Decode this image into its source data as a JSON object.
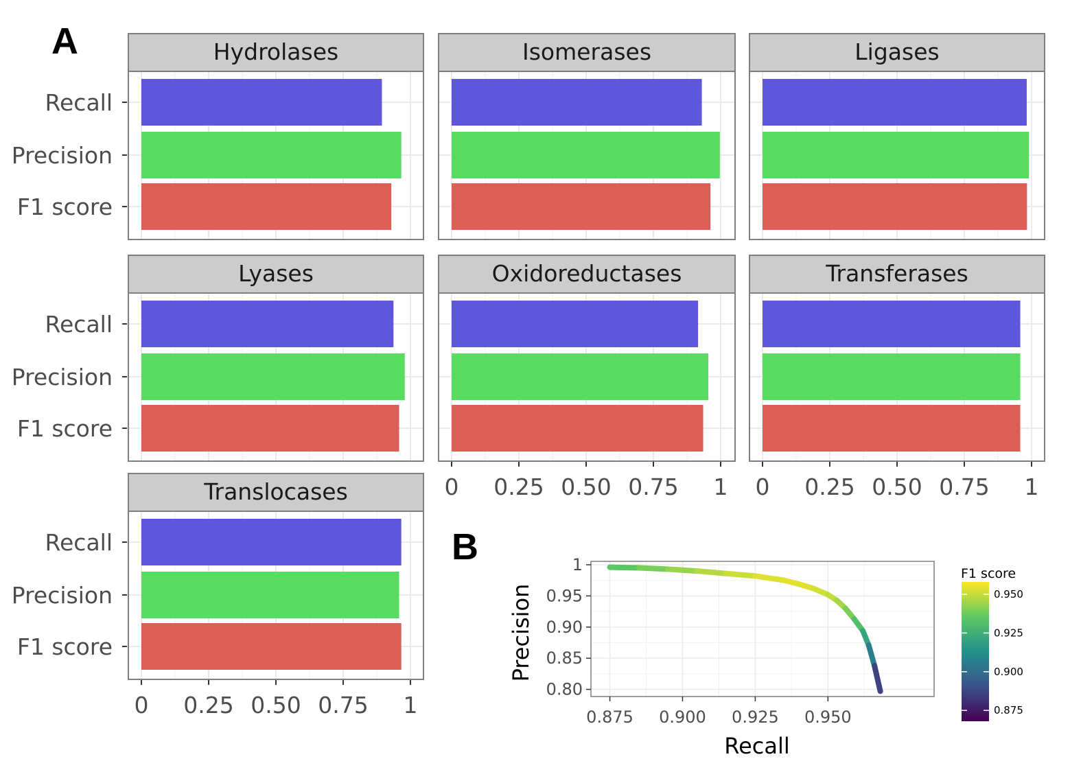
{
  "panel_labels": {
    "a": "A",
    "b": "B"
  },
  "colors": {
    "recall": "#5f57db",
    "precision": "#57db61",
    "f1": "#db5f57",
    "strip_bg": "#cccccc",
    "panel_border": "#7f7f7f",
    "grid": "#ebebeb"
  },
  "chart_data": [
    {
      "type": "bar",
      "orientation": "horizontal",
      "facets": [
        "Hydrolases",
        "Isomerases",
        "Ligases",
        "Lyases",
        "Oxidoreductases",
        "Transferases",
        "Translocases"
      ],
      "categories": [
        "Recall",
        "Precision",
        "F1 score"
      ],
      "x_ticks": [
        "0",
        "0.25",
        "0.50",
        "0.75",
        "1"
      ],
      "xlim": [
        0,
        1
      ],
      "values": {
        "Hydrolases": {
          "Recall": 0.894,
          "Precision": 0.966,
          "F1 score": 0.929
        },
        "Isomerases": {
          "Recall": 0.93,
          "Precision": 0.997,
          "F1 score": 0.962
        },
        "Ligases": {
          "Recall": 0.982,
          "Precision": 0.99,
          "F1 score": 0.983
        },
        "Lyases": {
          "Recall": 0.937,
          "Precision": 0.979,
          "F1 score": 0.958
        },
        "Oxidoreductases": {
          "Recall": 0.916,
          "Precision": 0.954,
          "F1 score": 0.935
        },
        "Transferases": {
          "Recall": 0.958,
          "Precision": 0.958,
          "F1 score": 0.958
        },
        "Translocases": {
          "Recall": 0.966,
          "Precision": 0.958,
          "F1 score": 0.966
        }
      },
      "grid": true
    },
    {
      "type": "line",
      "xlabel": "Recall",
      "ylabel": "Precision",
      "xlim": [
        0.8685,
        0.9865
      ],
      "ylim": [
        0.7885,
        1.0055
      ],
      "x_ticks": [
        "0.875",
        "0.900",
        "0.925",
        "0.950"
      ],
      "y_ticks": [
        "0.80",
        "0.85",
        "0.90",
        "0.95",
        "1"
      ],
      "color_scale": {
        "title": "F1 score",
        "palette": "viridis",
        "ticks": [
          "0.875",
          "0.900",
          "0.925",
          "0.950"
        ],
        "range": [
          0.868,
          0.958
        ]
      },
      "series": [
        {
          "x": [
            0.875,
            0.885,
            0.895,
            0.905,
            0.915,
            0.925,
            0.935,
            0.94,
            0.945,
            0.95,
            0.953,
            0.956,
            0.959,
            0.962,
            0.964,
            0.966,
            0.968
          ],
          "y": [
            0.996,
            0.995,
            0.993,
            0.99,
            0.986,
            0.982,
            0.975,
            0.969,
            0.962,
            0.952,
            0.943,
            0.93,
            0.913,
            0.894,
            0.871,
            0.838,
            0.797
          ]
        }
      ],
      "grid": true,
      "legend_position": "right"
    }
  ]
}
